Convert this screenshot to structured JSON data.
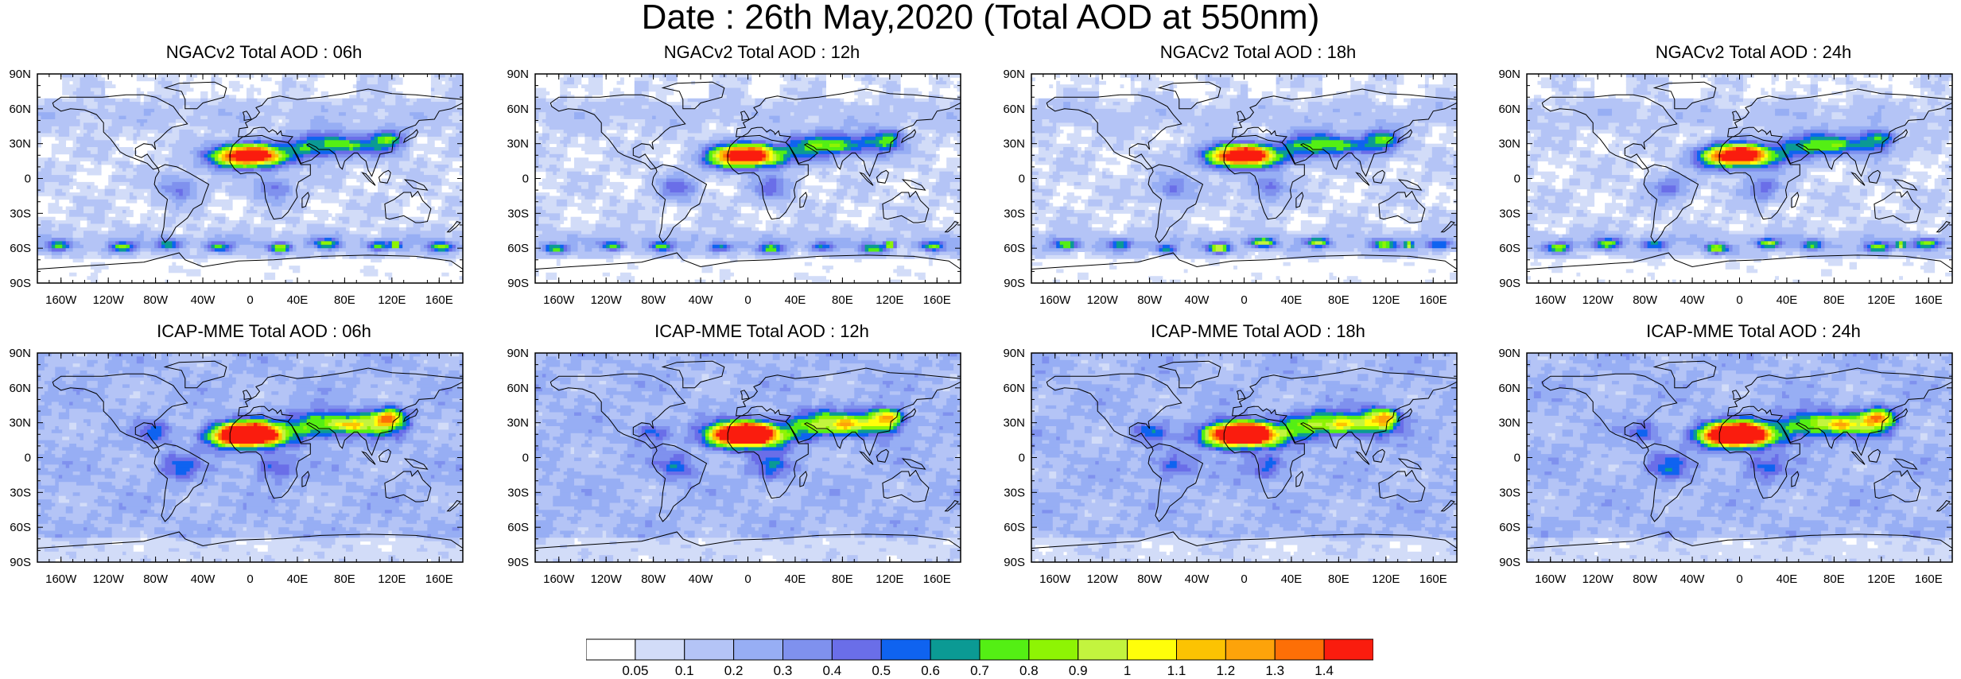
{
  "title": "Date : 26th May,2020 (Total AOD at 550nm)",
  "panels": [
    {
      "title": "NGACv2 Total AOD : 06h",
      "model": "NGACv2",
      "hour": "06h"
    },
    {
      "title": "NGACv2 Total AOD : 12h",
      "model": "NGACv2",
      "hour": "12h"
    },
    {
      "title": "NGACv2 Total AOD : 18h",
      "model": "NGACv2",
      "hour": "18h"
    },
    {
      "title": "NGACv2 Total AOD : 24h",
      "model": "NGACv2",
      "hour": "24h"
    },
    {
      "title": "ICAP-MME Total AOD : 06h",
      "model": "ICAP-MME",
      "hour": "06h"
    },
    {
      "title": "ICAP-MME Total AOD : 12h",
      "model": "ICAP-MME",
      "hour": "12h"
    },
    {
      "title": "ICAP-MME Total AOD : 18h",
      "model": "ICAP-MME",
      "hour": "18h"
    },
    {
      "title": "ICAP-MME Total AOD : 24h",
      "model": "ICAP-MME",
      "hour": "24h"
    }
  ],
  "lat_ticks": [
    "90N",
    "60N",
    "30N",
    "0",
    "30S",
    "60S",
    "90S"
  ],
  "lon_ticks": [
    "160W",
    "120W",
    "80W",
    "40W",
    "0",
    "40E",
    "80E",
    "120E",
    "160E"
  ],
  "colorbar": {
    "colors": [
      "#ffffff",
      "#d2dcf8",
      "#b4c4f6",
      "#97aef4",
      "#7f91ee",
      "#6a6ee8",
      "#0f63f0",
      "#0b9a94",
      "#54ef14",
      "#8ef404",
      "#c3f43e",
      "#fffe0a",
      "#fcc302",
      "#fda30a",
      "#fd6f06",
      "#fa1c0e"
    ],
    "labels": [
      "0.05",
      "0.1",
      "0.2",
      "0.3",
      "0.4",
      "0.5",
      "0.6",
      "0.7",
      "0.8",
      "0.9",
      "1",
      "1.1",
      "1.2",
      "1.3",
      "1.4"
    ]
  }
}
